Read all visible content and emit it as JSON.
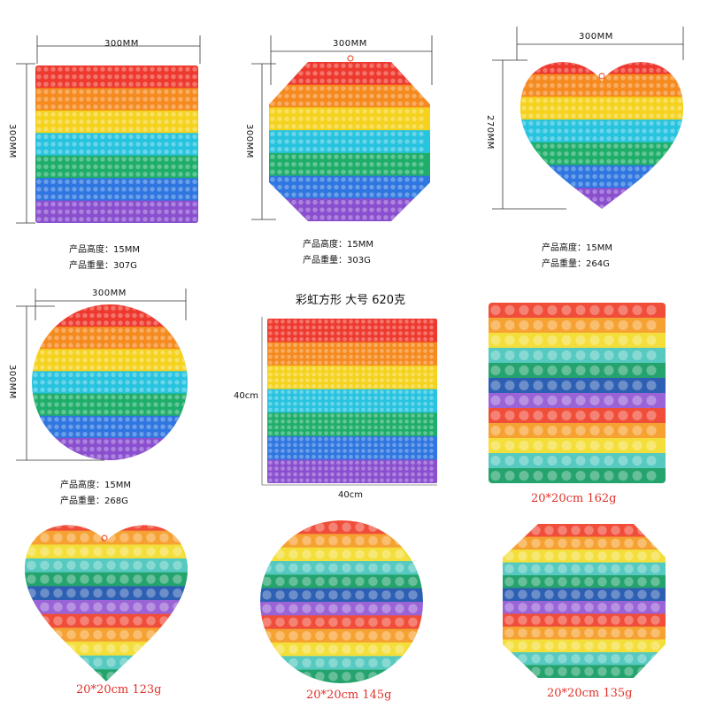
{
  "colors": {
    "rainbow": [
      "#ee3a2e",
      "#f58a1f",
      "#f5d21e",
      "#27c3df",
      "#1fae6a",
      "#2f76e0",
      "#8a4fcf"
    ],
    "rainbow_small": [
      "#f04e3a",
      "#f6a233",
      "#f4de3a",
      "#56c9c0",
      "#24a36d",
      "#2d5fb3",
      "#9a63d6",
      "#f04e3a",
      "#f6a233",
      "#f4de3a",
      "#56c9c0",
      "#24a36d"
    ],
    "caption_red": "#e0322a"
  },
  "products": [
    {
      "shape": "square",
      "width_label": "300MM",
      "height_label": "300MM",
      "spec1": "产品高度：15MM",
      "spec2": "产品重量：307G"
    },
    {
      "shape": "octagon",
      "width_label": "300MM",
      "height_label": "300MM",
      "spec1": "产品高度：15MM",
      "spec2": "产品重量：303G"
    },
    {
      "shape": "heart",
      "width_label": "300MM",
      "height_label": "270MM",
      "spec1": "产品高度：15MM",
      "spec2": "产品重量：264G"
    },
    {
      "shape": "circle",
      "width_label": "300MM",
      "height_label": "300MM",
      "spec1": "产品高度：15MM",
      "spec2": "产品重量：268G"
    },
    {
      "shape": "square",
      "title": "彩虹方形  大号  620克",
      "width_label": "40cm",
      "height_label": "40cm"
    },
    {
      "shape": "square",
      "caption": "20*20cm 162g"
    },
    {
      "shape": "heart",
      "caption": "20*20cm 123g"
    },
    {
      "shape": "circle",
      "caption": "20*20cm 145g"
    },
    {
      "shape": "octagon",
      "caption": "20*20cm 135g"
    }
  ]
}
